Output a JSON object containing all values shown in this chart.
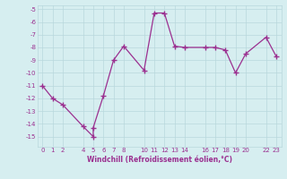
{
  "xlabel": "Windchill (Refroidissement éolien,°C)",
  "line_color": "#9b3090",
  "background_color": "#d6eef0",
  "grid_color": "#b8d8dc",
  "x_data": [
    0,
    1,
    2,
    4,
    5,
    5,
    6,
    7,
    8,
    10,
    11,
    12,
    13,
    14,
    16,
    17,
    18,
    19,
    20,
    22,
    23
  ],
  "y_data": [
    -11.0,
    -12.0,
    -12.5,
    -14.2,
    -15.0,
    -14.3,
    -11.8,
    -9.0,
    -7.9,
    -9.8,
    -5.3,
    -5.3,
    -7.9,
    -8.0,
    -8.0,
    -8.0,
    -8.2,
    -10.0,
    -8.5,
    -7.2,
    -8.7
  ],
  "xlim": [
    -0.5,
    23.5
  ],
  "ylim": [
    -15.8,
    -4.7
  ],
  "xticks": [
    0,
    1,
    2,
    4,
    5,
    6,
    7,
    8,
    10,
    11,
    12,
    13,
    14,
    16,
    17,
    18,
    19,
    20,
    22,
    23
  ],
  "yticks": [
    -5,
    -6,
    -7,
    -8,
    -9,
    -10,
    -11,
    -12,
    -13,
    -14,
    -15
  ],
  "marker": "+",
  "markersize": 4,
  "linewidth": 0.9,
  "tick_fontsize": 5.0,
  "xlabel_fontsize": 5.5
}
